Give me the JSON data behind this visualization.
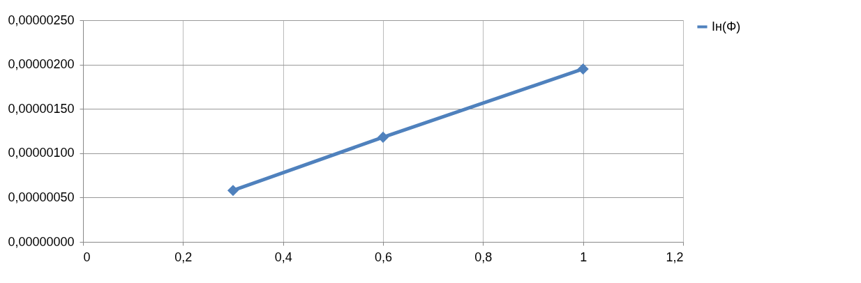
{
  "chart_data": {
    "type": "line",
    "x": [
      0.3,
      0.6,
      1
    ],
    "series": [
      {
        "name": "Iн(Φ)",
        "color": "#4f81bd",
        "values": [
          5.8e-07,
          1.18e-06,
          1.95e-06
        ]
      }
    ],
    "xlim": [
      0,
      1.2
    ],
    "xticks": [
      0,
      {
        "value": 0.2,
        "label": "0,2"
      },
      {
        "value": 0.4,
        "label": "0,4"
      },
      {
        "value": 0.6,
        "label": "0,6"
      },
      {
        "value": 0.8,
        "label": "0,8"
      },
      1,
      {
        "value": 1.2,
        "label": "1,2"
      }
    ],
    "ylim": [
      0,
      2.5e-06
    ],
    "yticks": [
      {
        "value": 0,
        "label": "0,00000000"
      },
      {
        "value": 5e-07,
        "label": "0,00000050"
      },
      {
        "value": 1e-06,
        "label": "0,00000100"
      },
      {
        "value": 1.5e-06,
        "label": "0,00000150"
      },
      {
        "value": 2e-06,
        "label": "0,00000200"
      },
      {
        "value": 2.5e-06,
        "label": "0,00000250"
      }
    ],
    "grid": true,
    "legend": "right",
    "marker": "diamond",
    "line_style": "solid"
  }
}
